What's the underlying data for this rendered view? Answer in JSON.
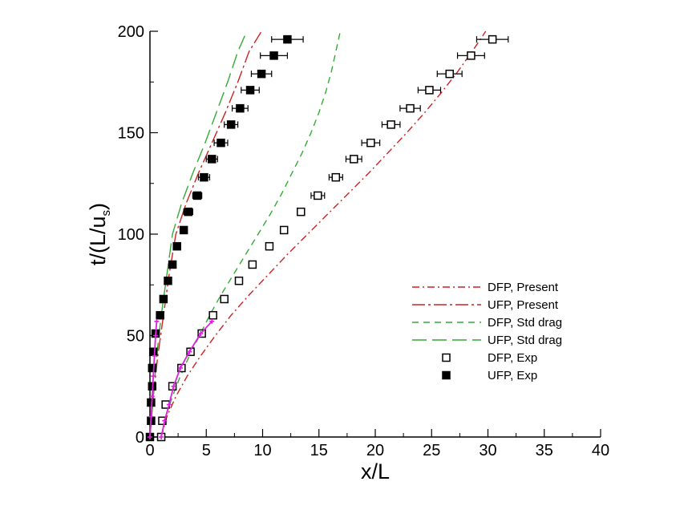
{
  "chart_data": {
    "type": "scatter",
    "xlabel": "x/L",
    "ylabel_main": "t/(L/u",
    "ylabel_sub": "s",
    "ylabel_close": ")",
    "xlim": [
      0,
      40
    ],
    "ylim": [
      0,
      200
    ],
    "x_ticks": [
      0,
      5,
      10,
      15,
      20,
      25,
      30,
      35,
      40
    ],
    "y_ticks": [
      0,
      50,
      100,
      150,
      200
    ],
    "legend_position": "center-right",
    "grid": false,
    "colors": {
      "present": "#cc2222",
      "std_drag": "#33aa33",
      "exp": "#000000",
      "magenta": "#dd22dd"
    },
    "series": [
      {
        "name": "DFP, Present",
        "style": "dashdot",
        "color": "#cc2222",
        "points": [
          [
            1,
            0
          ],
          [
            1.5,
            10
          ],
          [
            2.3,
            20
          ],
          [
            3.3,
            30
          ],
          [
            4.5,
            40
          ],
          [
            5.8,
            50
          ],
          [
            7.2,
            60
          ],
          [
            8.8,
            70
          ],
          [
            10.5,
            80
          ],
          [
            12.2,
            90
          ],
          [
            14,
            100
          ],
          [
            15.8,
            110
          ],
          [
            17.6,
            120
          ],
          [
            19.4,
            130
          ],
          [
            21.1,
            140
          ],
          [
            22.8,
            150
          ],
          [
            24.4,
            160
          ],
          [
            25.9,
            170
          ],
          [
            27.3,
            180
          ],
          [
            28.6,
            190
          ],
          [
            29.8,
            200
          ]
        ]
      },
      {
        "name": "UFP, Present",
        "style": "longdashdot",
        "color": "#cc2222",
        "points": [
          [
            0,
            0
          ],
          [
            0.3,
            20
          ],
          [
            0.7,
            40
          ],
          [
            1.2,
            60
          ],
          [
            1.7,
            80
          ],
          [
            2.3,
            100
          ],
          [
            3.2,
            115
          ],
          [
            4.3,
            130
          ],
          [
            5.5,
            145
          ],
          [
            6.7,
            160
          ],
          [
            7.8,
            175
          ],
          [
            8.8,
            190
          ],
          [
            9.9,
            200
          ]
        ]
      },
      {
        "name": "DFP, Std drag",
        "style": "dash",
        "color": "#33aa33",
        "points": [
          [
            1,
            0
          ],
          [
            1.4,
            10
          ],
          [
            2,
            20
          ],
          [
            2.7,
            30
          ],
          [
            3.5,
            40
          ],
          [
            4.4,
            50
          ],
          [
            5.3,
            60
          ],
          [
            6.3,
            70
          ],
          [
            7.4,
            80
          ],
          [
            8.5,
            90
          ],
          [
            9.6,
            100
          ],
          [
            10.7,
            110
          ],
          [
            11.7,
            120
          ],
          [
            12.6,
            130
          ],
          [
            13.5,
            140
          ],
          [
            14.3,
            150
          ],
          [
            15,
            160
          ],
          [
            15.6,
            170
          ],
          [
            16.1,
            180
          ],
          [
            16.5,
            190
          ],
          [
            16.9,
            200
          ]
        ]
      },
      {
        "name": "UFP, Std drag",
        "style": "longdash",
        "color": "#33aa33",
        "points": [
          [
            0,
            0
          ],
          [
            0.3,
            20
          ],
          [
            0.6,
            40
          ],
          [
            1,
            60
          ],
          [
            1.5,
            80
          ],
          [
            2,
            100
          ],
          [
            2.8,
            115
          ],
          [
            3.8,
            130
          ],
          [
            4.9,
            145
          ],
          [
            5.9,
            160
          ],
          [
            6.9,
            175
          ],
          [
            7.8,
            190
          ],
          [
            8.6,
            200
          ]
        ]
      }
    ],
    "exp_series": [
      {
        "name": "DFP, Exp",
        "marker": "open-square",
        "points": [
          [
            1,
            0
          ],
          [
            1.1,
            8
          ],
          [
            1.4,
            16
          ],
          [
            2,
            25
          ],
          [
            2.8,
            34
          ],
          [
            3.6,
            42
          ],
          [
            4.6,
            51
          ],
          [
            5.6,
            60
          ],
          [
            6.6,
            68
          ],
          [
            7.9,
            77
          ],
          [
            9.1,
            85
          ],
          [
            10.6,
            94
          ],
          [
            11.9,
            102
          ],
          [
            13.4,
            111
          ],
          [
            14.9,
            119
          ],
          [
            16.5,
            128
          ],
          [
            18.1,
            137
          ],
          [
            19.6,
            145
          ],
          [
            21.4,
            154
          ],
          [
            23.1,
            162
          ],
          [
            24.8,
            171
          ],
          [
            26.6,
            179
          ],
          [
            28.5,
            188
          ],
          [
            30.4,
            196
          ]
        ],
        "xerr": [
          0,
          0,
          0,
          0,
          0,
          0,
          0,
          0,
          0,
          0,
          0,
          0,
          0,
          0,
          0.6,
          0.6,
          0.7,
          0.8,
          0.8,
          0.9,
          1,
          1.1,
          1.2,
          1.4
        ]
      },
      {
        "name": "UFP, Exp",
        "marker": "filled-square",
        "points": [
          [
            0,
            0
          ],
          [
            0.1,
            8
          ],
          [
            0.1,
            17
          ],
          [
            0.2,
            25
          ],
          [
            0.2,
            34
          ],
          [
            0.3,
            42
          ],
          [
            0.5,
            51
          ],
          [
            0.9,
            60
          ],
          [
            1.2,
            68
          ],
          [
            1.6,
            77
          ],
          [
            2,
            85
          ],
          [
            2.4,
            94
          ],
          [
            3,
            102
          ],
          [
            3.4,
            111
          ],
          [
            4.2,
            119
          ],
          [
            4.8,
            128
          ],
          [
            5.5,
            137
          ],
          [
            6.3,
            145
          ],
          [
            7.2,
            154
          ],
          [
            8,
            162
          ],
          [
            8.9,
            171
          ],
          [
            9.9,
            179
          ],
          [
            11,
            188
          ],
          [
            12.2,
            196
          ]
        ],
        "xerr": [
          0,
          0,
          0,
          0,
          0,
          0,
          0,
          0,
          0,
          0,
          0,
          0,
          0.3,
          0.4,
          0.4,
          0.5,
          0.5,
          0.6,
          0.6,
          0.7,
          0.8,
          0.9,
          1.2,
          1.4
        ]
      }
    ],
    "magenta_series": [
      {
        "points": [
          [
            0,
            0
          ],
          [
            0.1,
            10
          ],
          [
            0.2,
            20
          ],
          [
            0.3,
            30
          ],
          [
            0.4,
            40
          ],
          [
            0.5,
            50
          ],
          [
            0.6,
            57
          ]
        ]
      },
      {
        "points": [
          [
            1,
            0
          ],
          [
            1.3,
            8
          ],
          [
            1.7,
            16
          ],
          [
            2.1,
            25
          ],
          [
            2.7,
            34
          ],
          [
            3.5,
            42
          ],
          [
            4.5,
            51
          ],
          [
            5.5,
            57
          ]
        ]
      }
    ]
  }
}
